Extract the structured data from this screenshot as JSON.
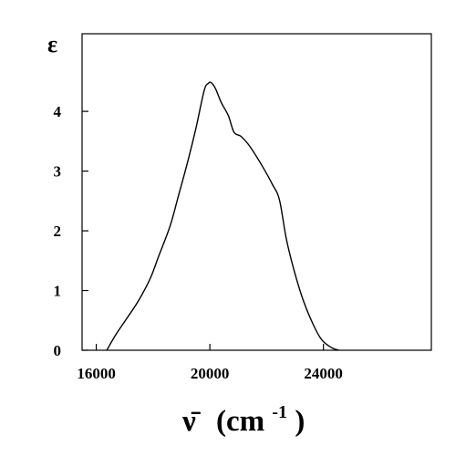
{
  "chart_data": {
    "type": "line",
    "xlabel_main": "ν̄",
    "xlabel_unit_open": "(cm",
    "xlabel_unit_sup": "-1",
    "xlabel_unit_close": ")",
    "ylabel": "ε",
    "xlim": [
      15500,
      27800
    ],
    "ylim": [
      0,
      5.3
    ],
    "xticks": [
      16000,
      20000,
      24000
    ],
    "xtick_labels": [
      "16000",
      "20000",
      "24000"
    ],
    "yticks": [
      0,
      1,
      2,
      3,
      4
    ],
    "ytick_labels": [
      "0",
      "1",
      "2",
      "3",
      "4"
    ],
    "grid": false,
    "legend": "none",
    "line_color": "#000000",
    "series": [
      {
        "x": [
          16370,
          16700,
          17100,
          17500,
          17900,
          18200,
          18600,
          18900,
          19200,
          19500,
          19800,
          19950,
          20050,
          20200,
          20400,
          20650,
          20850,
          21100,
          21400,
          21800,
          22200,
          22450,
          22700,
          23000,
          23300,
          23650,
          23950,
          24300,
          24550
        ],
        "y": [
          0.0,
          0.27,
          0.55,
          0.84,
          1.2,
          1.58,
          2.08,
          2.6,
          3.12,
          3.7,
          4.35,
          4.47,
          4.48,
          4.38,
          4.15,
          3.93,
          3.65,
          3.58,
          3.42,
          3.12,
          2.78,
          2.52,
          1.85,
          1.28,
          0.82,
          0.42,
          0.17,
          0.04,
          0.0
        ]
      }
    ]
  }
}
